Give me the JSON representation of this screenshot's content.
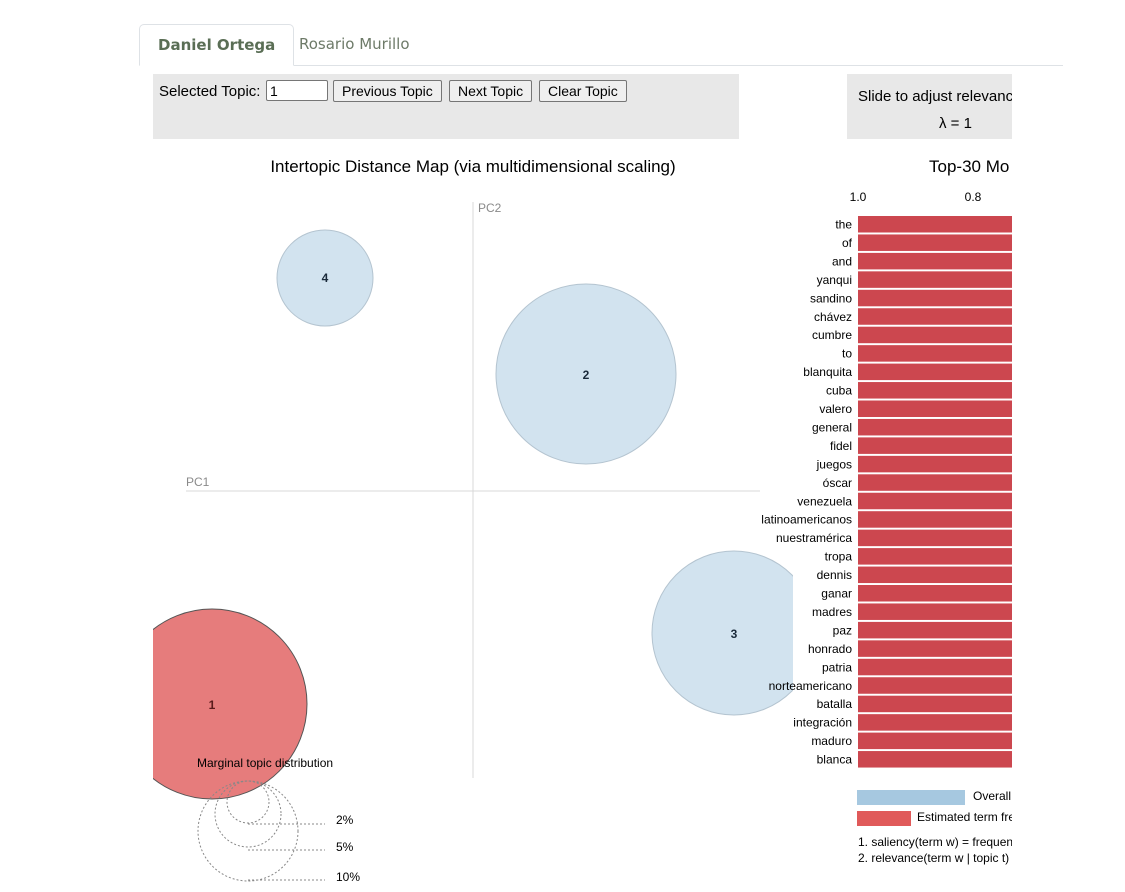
{
  "tabs": [
    {
      "label": "Daniel Ortega",
      "active": true
    },
    {
      "label": "Rosario Murillo",
      "active": false
    }
  ],
  "controls": {
    "selected_topic_label": "Selected Topic:",
    "selected_topic_value": "1",
    "previous_label": "Previous Topic",
    "next_label": "Next Topic",
    "clear_label": "Clear Topic",
    "slide_label": "Slide to adjust relevanc",
    "lambda_label": "λ = 1"
  },
  "map": {
    "title": "Intertopic Distance Map (via multidimensional scaling)",
    "pc1_label": "PC1",
    "pc2_label": "PC2",
    "topics": [
      {
        "id": "1",
        "label": "1",
        "selected": true
      },
      {
        "id": "2",
        "label": "2",
        "selected": false
      },
      {
        "id": "3",
        "label": "3",
        "selected": false
      },
      {
        "id": "4",
        "label": "4",
        "selected": false
      }
    ],
    "marginal": {
      "title": "Marginal topic distribution",
      "scale": [
        "2%",
        "5%",
        "10%"
      ]
    }
  },
  "chart_data": {
    "type": "bar",
    "title": "Top-30 Mo",
    "x_ticks": [
      "1.0",
      "0.8"
    ],
    "xlim": [
      1.0,
      0.8
    ],
    "categories": [
      "the",
      "of",
      "and",
      "yanqui",
      "sandino",
      "chávez",
      "cumbre",
      "to",
      "blanquita",
      "cuba",
      "valero",
      "general",
      "fidel",
      "juegos",
      "óscar",
      "venezuela",
      "latinoamericanos",
      "nuestramérica",
      "tropa",
      "dennis",
      "ganar",
      "madres",
      "paz",
      "honrado",
      "patria",
      "norteamericano",
      "batalla",
      "integración",
      "maduro",
      "blanca"
    ],
    "series": [
      {
        "name": "Estimated term fre",
        "values": [
          0.8,
          0.8,
          0.8,
          0.8,
          0.8,
          0.8,
          0.8,
          0.8,
          0.8,
          0.8,
          0.8,
          0.8,
          0.8,
          0.8,
          0.8,
          0.8,
          0.8,
          0.8,
          0.8,
          0.8,
          0.8,
          0.8,
          0.8,
          0.8,
          0.8,
          0.8,
          0.8,
          0.8,
          0.8,
          0.8
        ]
      }
    ]
  },
  "legend": {
    "overall_label": "Overall",
    "estimated_label": "Estimated term fre",
    "note1": "1. saliency(term w) = frequen",
    "note2": "2. relevance(term w | topic t)"
  },
  "colors": {
    "selected_circle": "#e67c7c",
    "topic_circle": "#d2e3ef",
    "bar_red": "#cc474f",
    "overall_blue": "#a6c8e0",
    "estimated_red": "#e05a5a"
  }
}
